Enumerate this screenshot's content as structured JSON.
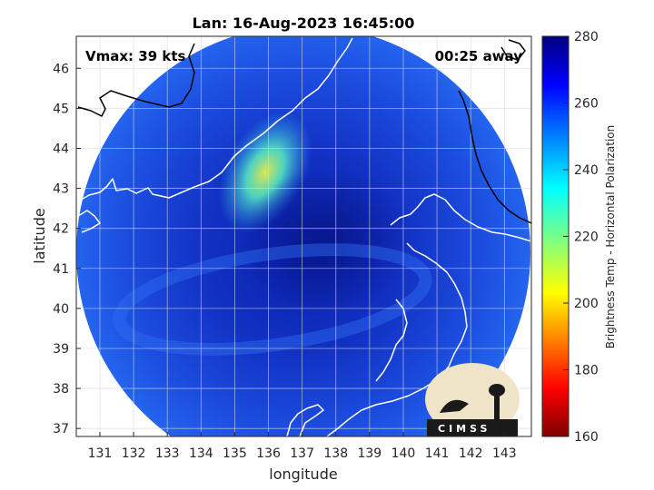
{
  "title": "Lan: 16-Aug-2023 16:45:00",
  "vmax_label": "Vmax: 39 kts",
  "time_away_label": "00:25 away",
  "logo": {
    "text": "CIMSS"
  },
  "map": {
    "xlabel": "longitude",
    "ylabel": "latitude",
    "xlim": [
      130.3,
      143.8
    ],
    "ylim": [
      36.8,
      46.8
    ],
    "xticks": [
      131,
      132,
      133,
      134,
      135,
      136,
      137,
      138,
      139,
      140,
      141,
      142,
      143
    ],
    "yticks": [
      37,
      38,
      39,
      40,
      41,
      42,
      43,
      44,
      45,
      46
    ],
    "grid": true
  },
  "colorbar": {
    "label": "Brightness Temp - Horizontal Polarization",
    "range": [
      160,
      280
    ],
    "ticks": [
      160,
      180,
      200,
      220,
      240,
      260,
      280
    ],
    "colormap": "jet",
    "colors": [
      "#7f0000",
      "#ff0000",
      "#ffff00",
      "#00ffff",
      "#0000ff",
      "#00007f"
    ]
  },
  "colors": {
    "background": "#ffffff",
    "coastline": "#ffffff",
    "coastline_outside": "#000000",
    "scene_base": "#1a48e0"
  }
}
